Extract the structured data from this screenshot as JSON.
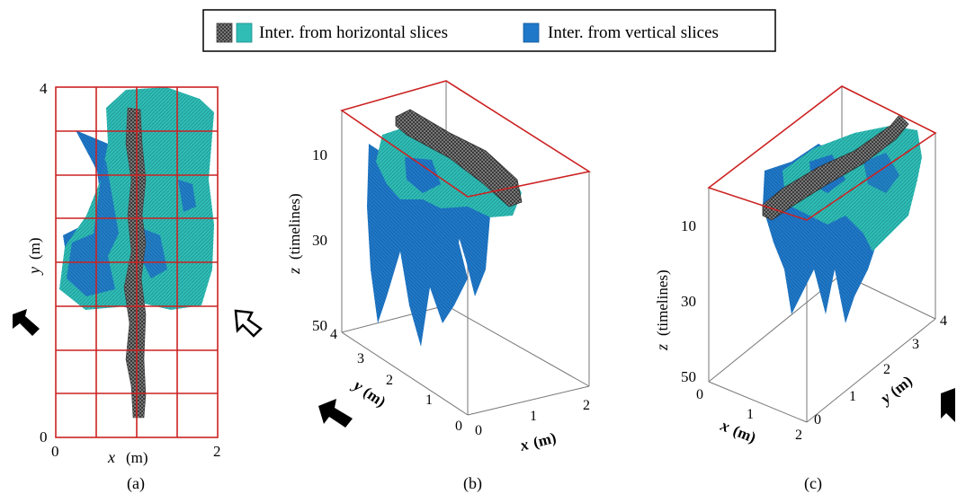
{
  "legend": {
    "horizontal_label": "Inter. from horizontal slices",
    "vertical_label": "Inter. from vertical slices"
  },
  "colors": {
    "horizontal": "#2fbdb6",
    "horizontal_dark": "#1e8f8c",
    "vertical": "#1f78c8",
    "vertical_dark": "#15589a",
    "ridge": "#8a8a8a",
    "ridge_dark": "#3c3c3c",
    "frame": "#cc2222",
    "axis": "#777777"
  },
  "panel_a": {
    "caption": "(a)",
    "x_axis_label": "x",
    "x_unit": "(m)",
    "y_axis_label": "y",
    "y_unit": "(m)",
    "x_ticks": [
      "0",
      "2"
    ],
    "y_ticks": [
      "0",
      "4"
    ]
  },
  "panel_b": {
    "caption": "(b)",
    "z_label": "z",
    "z_unit": "(timelines)",
    "z_ticks": [
      "10",
      "30",
      "50"
    ],
    "y_label": "y",
    "y_unit": "(m)",
    "y_ticks": [
      "0",
      "1",
      "2",
      "3",
      "4"
    ],
    "x_label": "x",
    "x_unit": "(m)",
    "x_ticks": [
      "0",
      "1",
      "2"
    ]
  },
  "panel_c": {
    "caption": "(c)",
    "z_label": "z",
    "z_unit": "(timelines)",
    "z_ticks": [
      "10",
      "30",
      "50"
    ],
    "x_label": "x",
    "x_unit": "(m)",
    "x_ticks": [
      "0",
      "1",
      "2"
    ],
    "y_label": "y",
    "y_unit": "(m)",
    "y_ticks": [
      "0",
      "1",
      "2",
      "3",
      "4"
    ]
  }
}
